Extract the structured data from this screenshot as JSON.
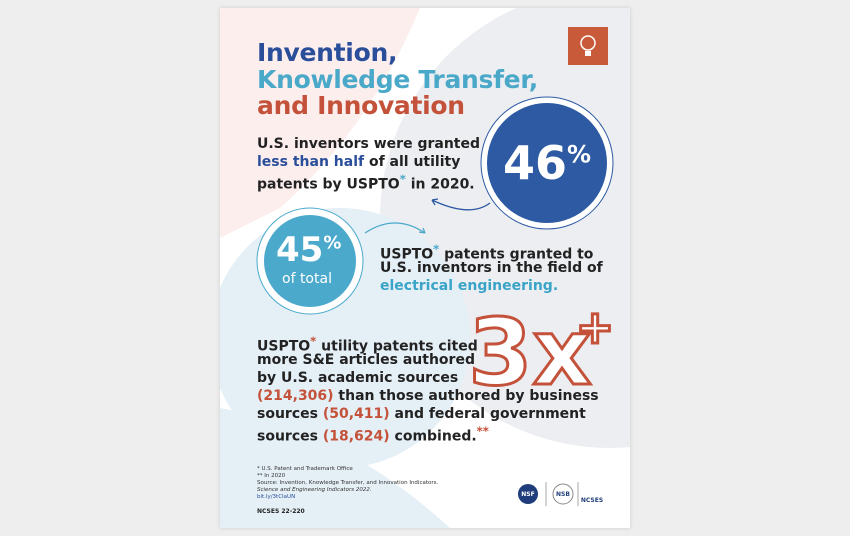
{
  "title": {
    "lines": [
      "Invention,",
      "Knowledge Transfer,",
      "and Innovation"
    ]
  },
  "stat1": {
    "figure": "46",
    "unit": "%",
    "lines": [
      [
        "U.S. inventors were granted"
      ],
      [
        "less than half",
        " of all utility"
      ],
      [
        "patents by USPTO",
        "*",
        " in 2020."
      ]
    ]
  },
  "stat2": {
    "figure": "45",
    "unit": "%",
    "caption": "of total",
    "lines": [
      [
        "USPTO",
        "*",
        " patents granted to"
      ],
      [
        "U.S. inventors in the field of"
      ],
      [
        "electrical engineering."
      ]
    ]
  },
  "stat3": {
    "figure": "3x",
    "mark": "+",
    "lines": [
      [
        "USPTO",
        "*",
        " utility patents cited"
      ],
      [
        "more S&E articles authored"
      ],
      [
        "by U.S. academic sources"
      ],
      [
        "(214,306)",
        " than those authored by business"
      ],
      [
        "sources ",
        "(50,411)",
        " and federal government"
      ],
      [
        "sources ",
        "(18,624)",
        " combined.",
        "**"
      ]
    ]
  },
  "footnotes": [
    "* U.S. Patent and Trademark Office",
    "** In 2020",
    "Source: Invention, Knowledge Transfer, and Innovation Indicators.",
    "Science and Engineering Indicators 2022.",
    "bit.ly/3tCIaUN"
  ],
  "report_id": "NCSES 22-220",
  "logos": [
    "NSF",
    "NSB",
    "NCSES"
  ]
}
